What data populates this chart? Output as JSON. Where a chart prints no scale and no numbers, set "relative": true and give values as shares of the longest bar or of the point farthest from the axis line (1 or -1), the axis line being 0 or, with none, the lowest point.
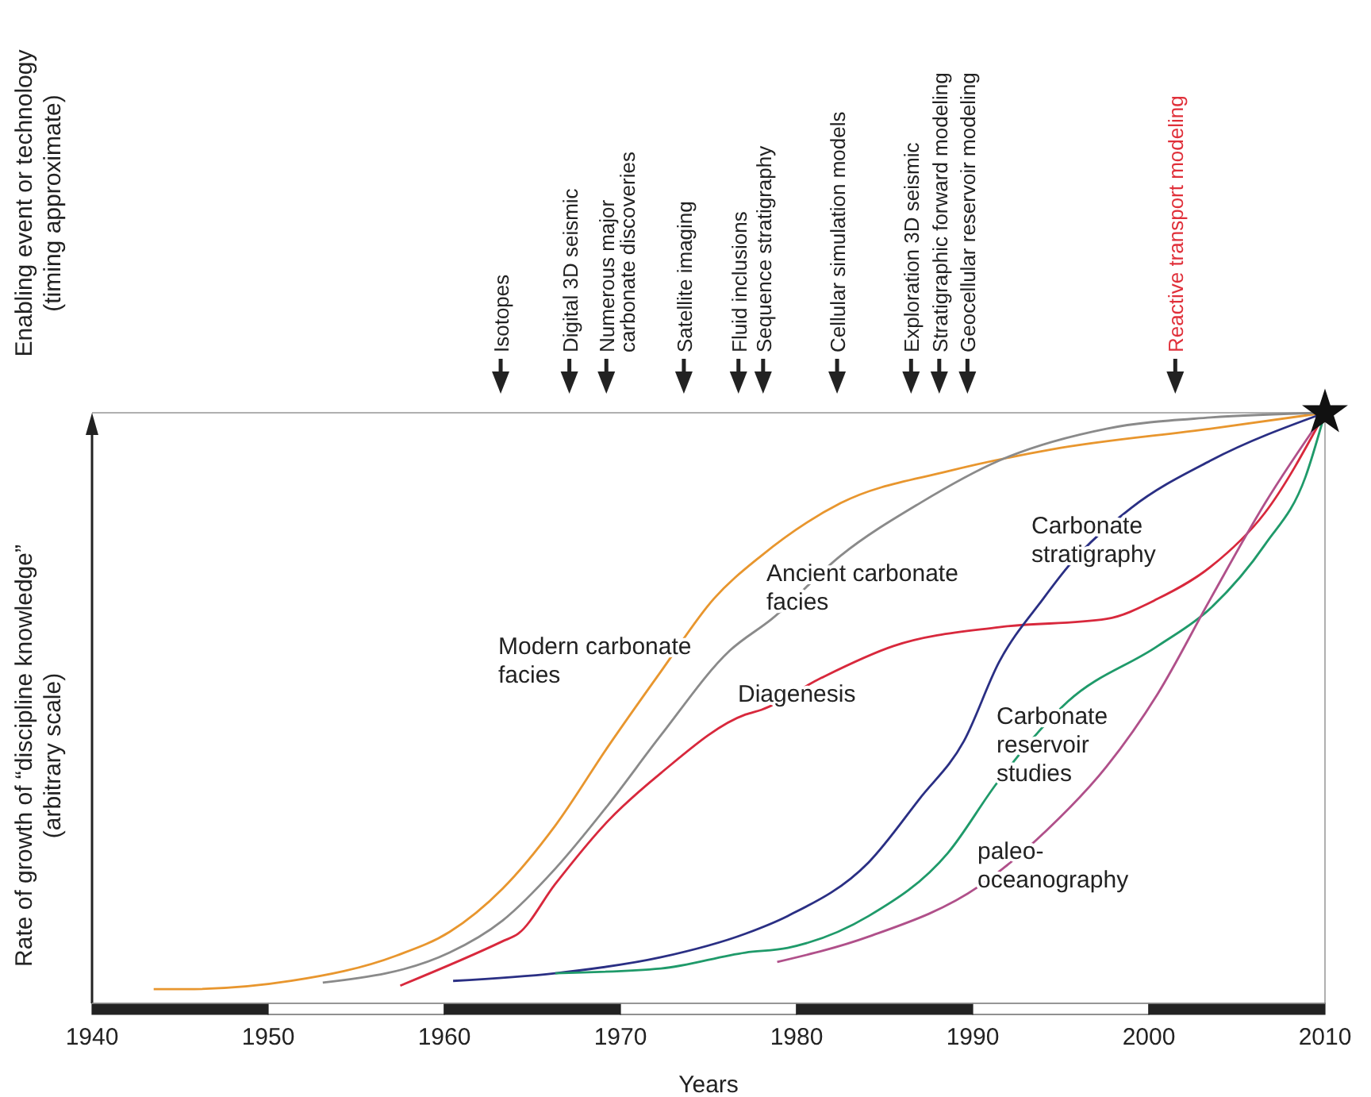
{
  "chart_data": {
    "type": "line",
    "relative": true,
    "xlabel": "Years",
    "ylabel": "Rate of growth of “discipline knowledge” (arbitrary scale)",
    "xlim": [
      1940,
      2010
    ],
    "xticks": [
      1940,
      1950,
      1960,
      1970,
      1980,
      1990,
      2000,
      2010
    ],
    "line_style": "solid",
    "series": [
      {
        "name": "Modern carbonate facies",
        "color": "#e8962e",
        "x": [
          1943.5,
          1945.3,
          1951.3,
          1957.3,
          1960.3,
          1963.3,
          1966.3,
          1969.3,
          1972.3,
          1975.3,
          1978.0,
          1982.5,
          1988.6,
          1994.5,
          2003.5,
          2010
        ],
        "values": [
          0.024,
          0.024,
          0.038,
          0.081,
          0.121,
          0.194,
          0.301,
          0.435,
          0.562,
          0.685,
          0.758,
          0.847,
          0.901,
          0.938,
          0.973,
          1
        ]
      },
      {
        "name": "Ancient carbonate facies",
        "color": "#8a8a8a",
        "x": [
          1953.1,
          1960.3,
          1963.3,
          1966.3,
          1969.3,
          1972.3,
          1976.2,
          1978.6,
          1982.5,
          1987.0,
          1991.5,
          1997.6,
          2003.5,
          2010
        ],
        "values": [
          0.035,
          0.086,
          0.14,
          0.228,
          0.336,
          0.454,
          0.597,
          0.651,
          0.758,
          0.847,
          0.919,
          0.973,
          0.992,
          1
        ]
      },
      {
        "name": "Diagenesis",
        "color": "#d8283c",
        "x": [
          1957.5,
          1963.3,
          1964.2,
          1966.3,
          1969.3,
          1972.3,
          1977.1,
          1978.0,
          1981.4,
          1985.5,
          1991.5,
          1997.6,
          2000.5,
          2003.5,
          2006.6,
          2010
        ],
        "values": [
          0.03,
          0.105,
          0.118,
          0.202,
          0.309,
          0.39,
          0.489,
          0.497,
          0.551,
          0.605,
          0.637,
          0.651,
          0.685,
          0.739,
          0.831,
          1
        ]
      },
      {
        "name": "Carbonate stratigraphy",
        "color": "#2a2f84",
        "x": [
          1960.5,
          1966.3,
          1972.3,
          1977.1,
          1979.5,
          1984.1,
          1987.0,
          1989.5,
          1991.5,
          1994.0,
          1995.4,
          1999.0,
          2003.5,
          2010
        ],
        "values": [
          0.038,
          0.051,
          0.078,
          0.118,
          0.148,
          0.239,
          0.347,
          0.444,
          0.578,
          0.685,
          0.739,
          0.839,
          0.919,
          1
        ]
      },
      {
        "name": "Carbonate reservoir studies",
        "color": "#1f9a6a",
        "x": [
          1966.3,
          1972.3,
          1977.1,
          1979.5,
          1984.1,
          1988.6,
          1991.4,
          1995.4,
          2000.5,
          2003.5,
          2006.6,
          2008.9,
          2010
        ],
        "values": [
          0.051,
          0.059,
          0.086,
          0.094,
          0.148,
          0.255,
          0.374,
          0.511,
          0.605,
          0.669,
          0.777,
          0.892,
          1
        ]
      },
      {
        "name": "paleo-oceanography",
        "color": "#b0508a",
        "x": [
          1978.9,
          1984.1,
          1990.4,
          1994.2,
          1997.6,
          2000.5,
          2003.5,
          2006.6,
          2010
        ],
        "values": [
          0.07,
          0.113,
          0.199,
          0.293,
          0.401,
          0.524,
          0.685,
          0.847,
          1
        ]
      }
    ],
    "annotations": [
      "Enabling event or technology (timing approximate)",
      "Isotopes",
      "Digital 3D seismic",
      "Numerous major carbonate discoveries",
      "Satellite imaging",
      "Fluid inclusions",
      "Sequence stratigraphy",
      "Cellular simulation models",
      "Exploration 3D seismic",
      "Stratigraphic forward modeling",
      "Geocellular reservoir modeling",
      "Reactive transport modeling"
    ]
  }
}
